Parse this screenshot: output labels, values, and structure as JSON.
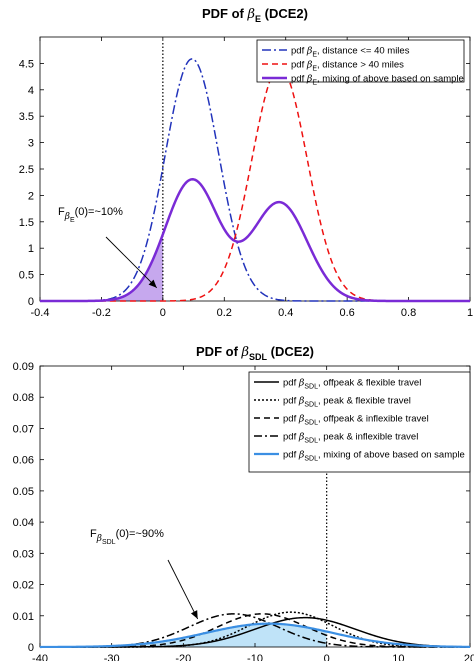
{
  "chart_data": [
    {
      "type": "line",
      "title_main": "PDF of ",
      "title_symbol": "β",
      "title_sub": "E",
      "title_suffix": " (DCE2)",
      "xlim": [
        -0.4,
        1.0
      ],
      "ylim": [
        0,
        5
      ],
      "xticks": [
        -0.4,
        -0.2,
        0,
        0.2,
        0.4,
        0.6,
        0.8,
        1
      ],
      "xtick_labels": [
        "-0.4",
        "-0.2",
        "0",
        "0.2",
        "0.4",
        "0.6",
        "0.8",
        "1"
      ],
      "yticks": [
        0,
        0.5,
        1,
        1.5,
        2,
        2.5,
        3,
        3.5,
        4,
        4.5
      ],
      "ytick_labels": [
        "0",
        "0.5",
        "1",
        "1.5",
        "2",
        "2.5",
        "3",
        "3.5",
        "4",
        "4.5"
      ],
      "vline_x": 0,
      "shade_below_x": 0,
      "shade_series": "mix",
      "shade_color": "#c6a8ee",
      "annotation": {
        "prefix": "F",
        "symbol": "β",
        "sub": "E",
        "suffix": "(0)=~10%",
        "arrow_to": [
          -0.02,
          0.25
        ]
      },
      "legend_position": "top-right",
      "series": [
        {
          "id": "near",
          "legend_prefix": "pdf ",
          "legend_symbol": "β",
          "legend_sub": "E",
          "legend_suffix": ", distance <= 40 miles",
          "color": "#2233bb",
          "dash": "9 3 2 3",
          "width": 1.5,
          "gauss": [
            [
              1.0,
              0.095,
              0.087
            ]
          ]
        },
        {
          "id": "far",
          "legend_prefix": "pdf ",
          "legend_symbol": "β",
          "legend_sub": "E",
          "legend_suffix": ", distance > 40 miles",
          "color": "#ee1111",
          "dash": "6 4",
          "width": 1.5,
          "gauss": [
            [
              1.0,
              0.38,
              0.09
            ]
          ]
        },
        {
          "id": "mix",
          "legend_prefix": "pdf ",
          "legend_symbol": "β",
          "legend_sub": "E",
          "legend_suffix": ", mixing of above based on sample",
          "color": "#7a2bd6",
          "dash": "",
          "width": 2.5,
          "gauss": [
            [
              0.5,
              0.095,
              0.087
            ],
            [
              0.42,
              0.38,
              0.09
            ]
          ]
        }
      ]
    },
    {
      "type": "line",
      "title_main": "PDF of ",
      "title_symbol": "β",
      "title_sub": "SDL",
      "title_suffix": " (DCE2)",
      "xlim": [
        -40,
        20
      ],
      "ylim": [
        0,
        0.09
      ],
      "xticks": [
        -40,
        -30,
        -20,
        -10,
        0,
        10,
        20
      ],
      "xtick_labels": [
        "-40",
        "-30",
        "-20",
        "-10",
        "0",
        "10",
        "20"
      ],
      "yticks": [
        0,
        0.01,
        0.02,
        0.03,
        0.04,
        0.05,
        0.06,
        0.07,
        0.08,
        0.09
      ],
      "ytick_labels": [
        "0",
        "0.01",
        "0.02",
        "0.03",
        "0.04",
        "0.05",
        "0.06",
        "0.07",
        "0.08",
        "0.09"
      ],
      "vline_x": 0,
      "shade_below_x": 0,
      "shade_series": "mix",
      "shade_color": "#bfe3f8",
      "annotation": {
        "prefix": "F",
        "symbol": "β",
        "sub": "SDL",
        "suffix": "(0)=~90%",
        "arrow_to": [
          -18,
          0.009
        ]
      },
      "legend_position": "top-right",
      "series": [
        {
          "id": "s1",
          "legend_prefix": "pdf ",
          "legend_symbol": "β",
          "legend_sub": "SDL",
          "legend_suffix": ", offpeak & flexible travel",
          "color": "#000000",
          "dash": "",
          "width": 1.5,
          "gauss": [
            [
              0.165,
              -3.0,
              7.0
            ]
          ]
        },
        {
          "id": "s2",
          "legend_prefix": "pdf ",
          "legend_symbol": "β",
          "legend_sub": "SDL",
          "legend_suffix": ", peak & flexible travel",
          "color": "#000000",
          "dash": "2 2",
          "width": 1.5,
          "gauss": [
            [
              0.165,
              -5.0,
              5.9
            ]
          ]
        },
        {
          "id": "s3",
          "legend_prefix": "pdf ",
          "legend_symbol": "β",
          "legend_sub": "SDL",
          "legend_suffix": ", offpeak & inflexible travel",
          "color": "#000000",
          "dash": "6 4",
          "width": 1.5,
          "gauss": [
            [
              0.165,
              -9.0,
              6.2
            ]
          ]
        },
        {
          "id": "s4",
          "legend_prefix": "pdf ",
          "legend_symbol": "β",
          "legend_sub": "SDL",
          "legend_suffix": ", peak & inflexible travel",
          "color": "#000000",
          "dash": "8 3 2 3",
          "width": 1.5,
          "gauss": [
            [
              0.165,
              -13.0,
              6.2
            ]
          ]
        },
        {
          "id": "mix",
          "legend_prefix": "pdf ",
          "legend_symbol": "β",
          "legend_sub": "SDL",
          "legend_suffix": ", mixing of above based on sample",
          "color": "#3b8fe3",
          "dash": "",
          "width": 2.2,
          "gauss": [
            [
              0.165,
              -8.0,
              8.8
            ]
          ]
        }
      ]
    }
  ]
}
